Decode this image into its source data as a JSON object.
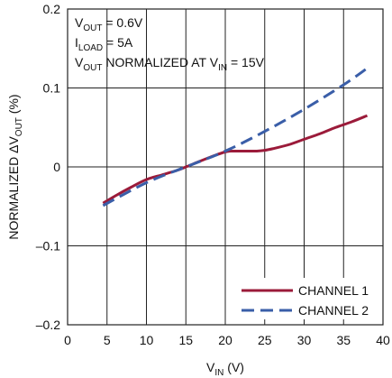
{
  "chart_data": {
    "type": "line",
    "xlabel": {
      "main": "V",
      "sub": "IN",
      "suffix": " (V)"
    },
    "ylabel": {
      "prefix": "NORMALIZED ΔV",
      "sub": "OUT",
      "suffix": " (%)"
    },
    "xlim": [
      0,
      40
    ],
    "ylim": [
      -0.2,
      0.2
    ],
    "xticks": [
      0,
      5,
      10,
      15,
      20,
      25,
      30,
      35,
      40
    ],
    "xtick_labels": [
      "0",
      "5",
      "10",
      "15",
      "20",
      "25",
      "30",
      "35",
      "40"
    ],
    "yticks": [
      -0.2,
      -0.1,
      0,
      0.1,
      0.2
    ],
    "ytick_labels": [
      "–0.2",
      "–0.1",
      "0",
      "0.1",
      "0.2"
    ],
    "grid": true,
    "legend_position": "bottom-right",
    "annotations": [
      {
        "main": "V",
        "sub": "OUT",
        "rest": " = 0.6V"
      },
      {
        "main": "I",
        "sub": "LOAD",
        "rest": " = 5A"
      },
      {
        "main": "V",
        "sub": "OUT",
        "rest": " NORMALIZED AT V",
        "sub2": "IN",
        "rest2": " = 15V"
      }
    ],
    "series": [
      {
        "name": "CHANNEL 1",
        "color": "#9b1b3a",
        "style": "solid",
        "x": [
          4.5,
          6,
          8,
          10,
          12,
          14,
          15,
          16,
          18,
          20,
          21,
          22,
          23,
          24,
          25,
          26,
          28,
          30,
          32,
          34,
          36,
          38
        ],
        "y": [
          -0.046,
          -0.037,
          -0.026,
          -0.016,
          -0.01,
          -0.004,
          0,
          0.004,
          0.012,
          0.019,
          0.02,
          0.02,
          0.02,
          0.02,
          0.021,
          0.023,
          0.028,
          0.035,
          0.042,
          0.05,
          0.057,
          0.065
        ]
      },
      {
        "name": "CHANNEL 2",
        "color": "#3a5ea8",
        "style": "dashed",
        "x": [
          4.5,
          10,
          15,
          20,
          25,
          30,
          35,
          38
        ],
        "y": [
          -0.049,
          -0.02,
          0,
          0.02,
          0.045,
          0.073,
          0.104,
          0.125
        ]
      }
    ]
  }
}
